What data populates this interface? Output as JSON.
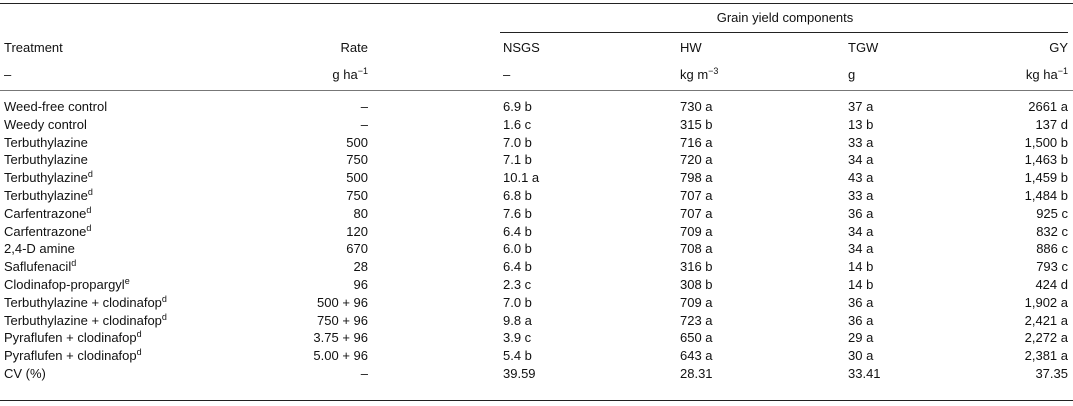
{
  "table": {
    "spanner": "Grain yield components",
    "columns": [
      "Treatment",
      "Rate",
      "NSGS",
      "HW",
      "TGW",
      "GY"
    ],
    "units": [
      {
        "text": "–"
      },
      {
        "text": "g ha",
        "sup": "−1"
      },
      {
        "text": "–"
      },
      {
        "text": "kg m",
        "sup": "−3"
      },
      {
        "text": "g"
      },
      {
        "text": "kg ha",
        "sup": "−1"
      }
    ],
    "rows": [
      {
        "treatment": "Weed-free control",
        "cells": [
          "–",
          "6.9 b",
          "730 a",
          "37 a",
          "2661 a"
        ]
      },
      {
        "treatment": "Weedy control",
        "cells": [
          "–",
          "1.6 c",
          "315 b",
          "13 b",
          "137 d"
        ]
      },
      {
        "treatment": "Terbuthylazine",
        "cells": [
          "500",
          "7.0 b",
          "716 a",
          "33 a",
          "1,500 b"
        ]
      },
      {
        "treatment": "Terbuthylazine",
        "cells": [
          "750",
          "7.1 b",
          "720 a",
          "34 a",
          "1,463 b"
        ]
      },
      {
        "treatment": "Terbuthylazine",
        "note": "d",
        "cells": [
          "500",
          "10.1 a",
          "798 a",
          "43 a",
          "1,459 b"
        ]
      },
      {
        "treatment": "Terbuthylazine",
        "note": "d",
        "cells": [
          "750",
          "6.8 b",
          "707 a",
          "33 a",
          "1,484 b"
        ]
      },
      {
        "treatment": "Carfentrazone",
        "note": "d",
        "cells": [
          "80",
          "7.6 b",
          "707 a",
          "36 a",
          "925 c"
        ]
      },
      {
        "treatment": "Carfentrazone",
        "note": "d",
        "cells": [
          "120",
          "6.4 b",
          "709 a",
          "34 a",
          "832 c"
        ]
      },
      {
        "treatment": "2,4-D amine",
        "cells": [
          "670",
          "6.0 b",
          "708 a",
          "34 a",
          "886 c"
        ]
      },
      {
        "treatment": "Saflufenacil",
        "note": "d",
        "cells": [
          "28",
          "6.4 b",
          "316 b",
          "14 b",
          "793 c"
        ]
      },
      {
        "treatment": "Clodinafop-propargyl",
        "note": "e",
        "cells": [
          "96",
          "2.3 c",
          "308 b",
          "14 b",
          "424 d"
        ]
      },
      {
        "treatment": "Terbuthylazine + clodinafop",
        "note": "d",
        "cells": [
          "500 + 96",
          "7.0 b",
          "709 a",
          "36 a",
          "1,902 a"
        ]
      },
      {
        "treatment": "Terbuthylazine + clodinafop",
        "note": "d",
        "cells": [
          "750 + 96",
          "9.8 a",
          "723 a",
          "36 a",
          "2,421 a"
        ]
      },
      {
        "treatment": "Pyraflufen + clodinafop",
        "note": "d",
        "cells": [
          "3.75 + 96",
          "3.9 c",
          "650 a",
          "29 a",
          "2,272 a"
        ]
      },
      {
        "treatment": "Pyraflufen + clodinafop",
        "note": "d",
        "cells": [
          "5.00 + 96",
          "5.4 b",
          "643 a",
          "30 a",
          "2,381 a"
        ]
      },
      {
        "treatment": "CV (%)",
        "cells": [
          "–",
          "39.59",
          "28.31",
          "33.41",
          "37.35"
        ]
      }
    ]
  }
}
